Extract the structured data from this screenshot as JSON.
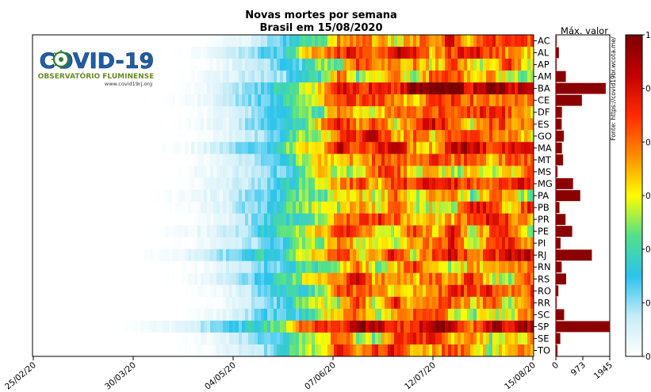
{
  "chart_data": {
    "type": "heatmap",
    "title": "Novas mortes por semana",
    "subtitle": "Brasil em 15/08/2020",
    "date_ticks": [
      "25/02/20",
      "30/03/20",
      "04/05/20",
      "07/06/20",
      "12/07/20",
      "15/08/20"
    ],
    "states": [
      "AC",
      "AL",
      "AP",
      "AM",
      "BA",
      "CE",
      "DF",
      "ES",
      "GO",
      "MA",
      "MT",
      "MS",
      "MG",
      "PA",
      "PB",
      "PR",
      "PE",
      "PI",
      "RJ",
      "RN",
      "RS",
      "RO",
      "RR",
      "SC",
      "SP",
      "SE",
      "TO"
    ],
    "max_chart_title": "Máx. valor",
    "max_ticks": [
      "0",
      "973",
      "1945"
    ],
    "max_xlim": [
      0,
      1945
    ],
    "max_values": [
      30,
      110,
      20,
      360,
      1800,
      940,
      220,
      210,
      290,
      220,
      260,
      60,
      620,
      880,
      130,
      350,
      590,
      170,
      1300,
      210,
      370,
      90,
      30,
      300,
      1945,
      160,
      60
    ],
    "starts": [
      0.32,
      0.27,
      0.3,
      0.27,
      0.26,
      0.24,
      0.28,
      0.26,
      0.29,
      0.22,
      0.28,
      0.25,
      0.27,
      0.22,
      0.25,
      0.28,
      0.22,
      0.26,
      0.18,
      0.26,
      0.25,
      0.28,
      0.3,
      0.28,
      0.15,
      0.26,
      0.28
    ],
    "intensity_base": [
      0.65,
      0.72,
      0.55,
      0.55,
      0.85,
      0.68,
      0.62,
      0.66,
      0.72,
      0.75,
      0.68,
      0.55,
      0.7,
      0.5,
      0.62,
      0.66,
      0.62,
      0.64,
      0.68,
      0.58,
      0.66,
      0.6,
      0.58,
      0.6,
      0.8,
      0.6,
      0.66
    ],
    "colorbar_ticks": [
      "0",
      "0.",
      "0.",
      "0.",
      "0.",
      "0.",
      "1"
    ],
    "colorbar_colors": [
      "#ffffff",
      "#c6ecf7",
      "#2bc3ee",
      "#52e08a",
      "#fffc00",
      "#ff8c00",
      "#ff2a00",
      "#c40000",
      "#7a0000"
    ],
    "source": "Fonte: https://covid19br.wcota.me/",
    "logo": {
      "title": "COVID-19",
      "subtitle": "OBSERVATÓRIO FLUMINENSE",
      "url": "www.covid19rj.org"
    },
    "colors": {
      "max_bars": "#8b0000",
      "logo_blue": "#1f5fa8",
      "logo_green": "#6a8a25"
    }
  }
}
